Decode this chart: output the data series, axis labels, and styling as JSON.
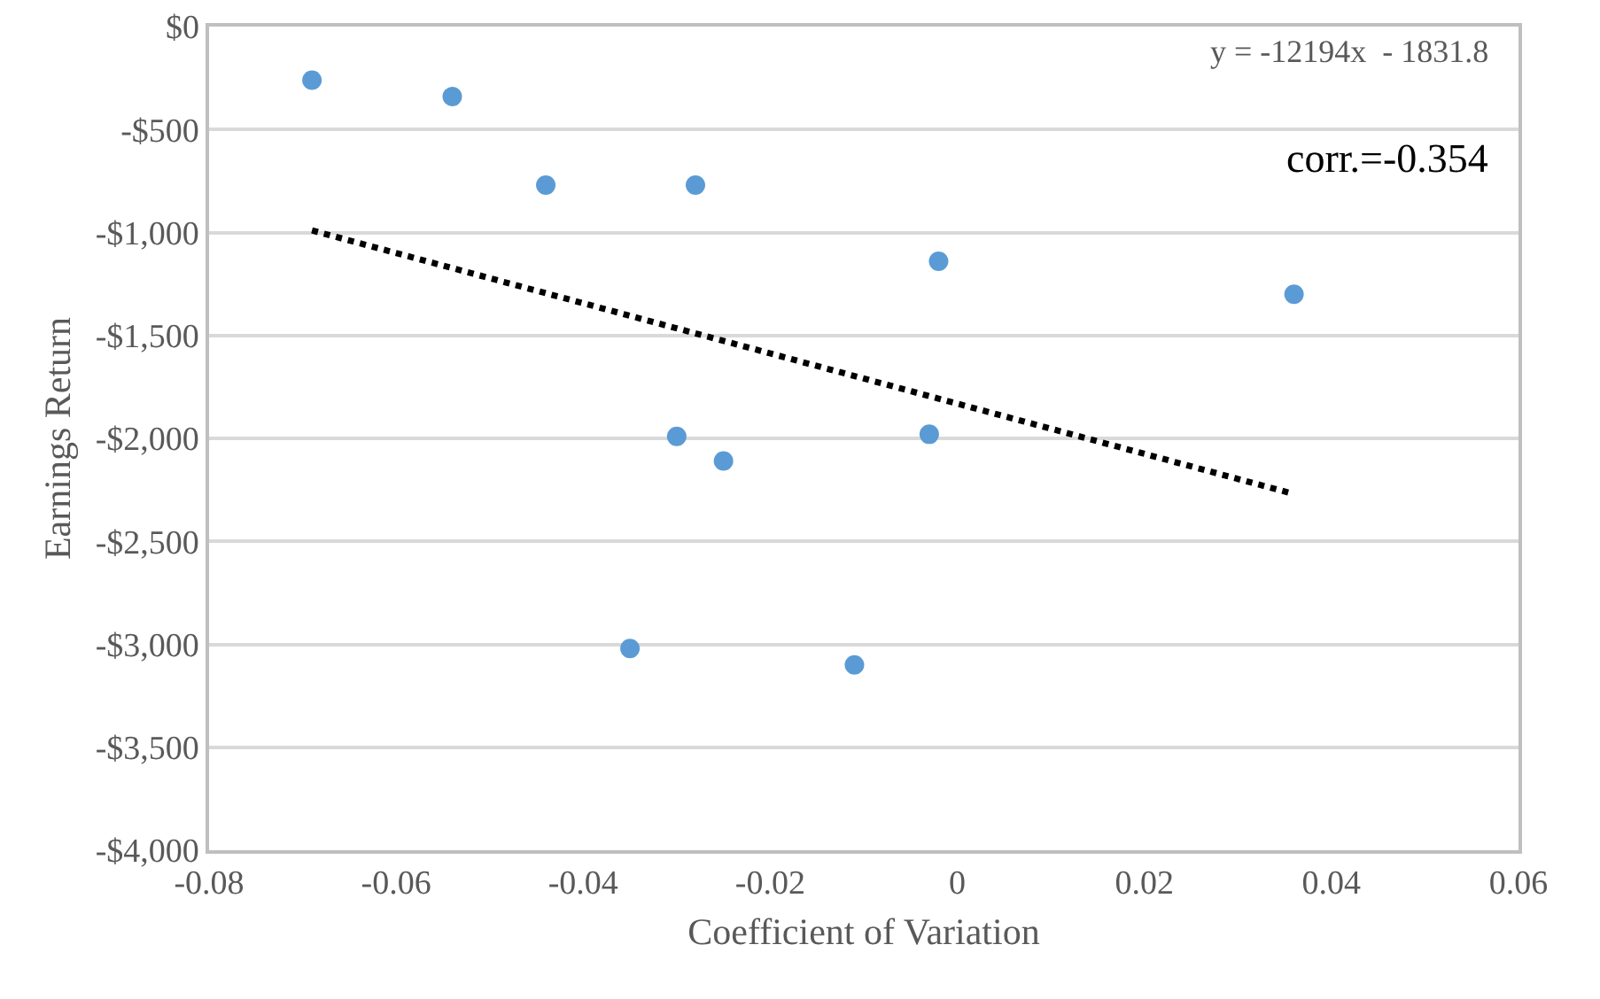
{
  "chart_data": {
    "type": "scatter",
    "xlabel": "Coefficient of Variation",
    "ylabel": "Earnings Return",
    "xlim": [
      -0.08,
      0.06
    ],
    "xticks": [
      -0.08,
      -0.06,
      -0.04,
      -0.02,
      0,
      0.02,
      0.04,
      0.06
    ],
    "ylim": [
      -4000,
      0
    ],
    "yticks": [
      {
        "value": -4000,
        "label": "-$4,000"
      },
      {
        "value": -3500,
        "label": "-$3,500"
      },
      {
        "value": -3000,
        "label": "-$3,000"
      },
      {
        "value": -2500,
        "label": "-$2,500"
      },
      {
        "value": -2000,
        "label": "-$2,000"
      },
      {
        "value": -1500,
        "label": "-$1,500"
      },
      {
        "value": -1000,
        "label": "-$1,000"
      },
      {
        "value": -500,
        "label": "-$500"
      },
      {
        "value": 0,
        "label": "$0"
      }
    ],
    "grid": "y",
    "marker": "circle",
    "series": [
      {
        "type": "scatter",
        "color": "#5b9bd5",
        "x": [
          -0.069,
          -0.054,
          -0.044,
          -0.028,
          -0.002,
          0.036,
          -0.03,
          -0.025,
          -0.003,
          -0.035,
          -0.011
        ],
        "values": [
          -260,
          -340,
          -770,
          -770,
          -1140,
          -1300,
          -1990,
          -2110,
          -1980,
          -3020,
          -3100
        ]
      },
      {
        "type": "line",
        "color": "#000000",
        "line_style": "dotted",
        "marker": "none",
        "x": [
          -0.069,
          0.036
        ],
        "values": [
          -990,
          -2270
        ]
      }
    ],
    "annotations": [
      "y = -12194x  - 1831.8",
      "corr.=-0.354"
    ]
  }
}
